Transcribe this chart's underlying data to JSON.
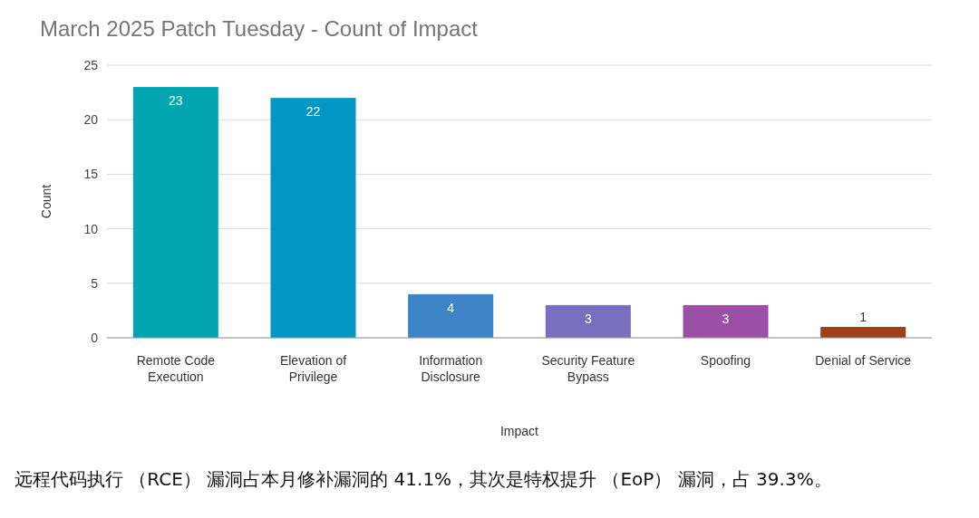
{
  "chart_data": {
    "type": "bar",
    "title": "March 2025 Patch Tuesday - Count of Impact",
    "xlabel": "Impact",
    "ylabel": "Count",
    "categories": [
      "Remote Code Execution",
      "Elevation of Privilege",
      "Information Disclosure",
      "Security Feature Bypass",
      "Spoofing",
      "Denial of Service"
    ],
    "values": [
      23,
      22,
      4,
      3,
      3,
      1
    ],
    "colors": [
      "#00a5b0",
      "#0097c4",
      "#3d85c6",
      "#7a6fbf",
      "#9b4fa5",
      "#a0401a"
    ],
    "ylim": [
      0,
      25
    ],
    "yticks": [
      0,
      5,
      10,
      15,
      20,
      25
    ],
    "grid": "y",
    "data_labels": true,
    "annotations": [
      "远程代码执行 （RCE） 漏洞占本月修补漏洞的 41.1%，其次是特权提升 （EoP） 漏洞，占 39.3%。"
    ]
  }
}
